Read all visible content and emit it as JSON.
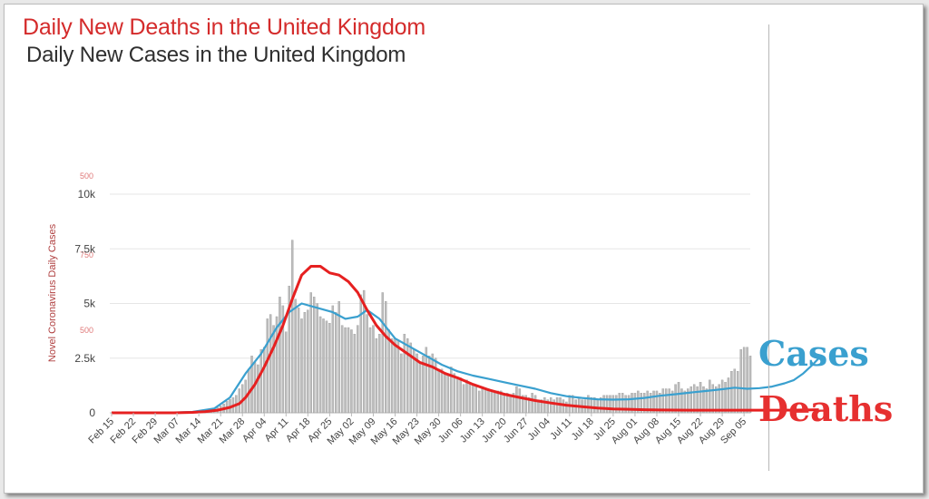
{
  "chart_data": {
    "type": "bar",
    "title": "Daily New Deaths in the United Kingdom",
    "subtitle": "Daily New Cases in the United Kingdom",
    "ylabel": "Novel Coronavirus Daily Cases",
    "ylim": [
      0,
      10000
    ],
    "yticks": [
      {
        "value": 0,
        "label": "0"
      },
      {
        "value": 2500,
        "label": "2.5k"
      },
      {
        "value": 5000,
        "label": "5k"
      },
      {
        "value": 7500,
        "label": "7.5k"
      },
      {
        "value": 10000,
        "label": "10k"
      }
    ],
    "ghost_yticks": [
      "500",
      "750",
      "500"
    ],
    "grid": true,
    "x_start_date": "Feb 15",
    "xticks": [
      "Feb 15",
      "Feb 22",
      "Feb 29",
      "Mar 07",
      "Mar 14",
      "Mar 21",
      "Mar 28",
      "Apr 04",
      "Apr 11",
      "Apr 18",
      "Apr 25",
      "May 02",
      "May 09",
      "May 16",
      "May 23",
      "May 30",
      "Jun 06",
      "Jun 13",
      "Jun 20",
      "Jun 27",
      "Jul 04",
      "Jul 11",
      "Jul 18",
      "Jul 25",
      "Aug 01",
      "Aug 08",
      "Aug 15",
      "Aug 22",
      "Aug 29",
      "Sep 05"
    ],
    "cases_daily": [
      0,
      0,
      0,
      0,
      0,
      0,
      0,
      0,
      0,
      0,
      0,
      0,
      0,
      0,
      0,
      0,
      0,
      0,
      0,
      5,
      10,
      20,
      20,
      30,
      40,
      50,
      60,
      70,
      80,
      110,
      130,
      150,
      170,
      200,
      250,
      320,
      410,
      530,
      620,
      700,
      800,
      1100,
      1300,
      1500,
      2000,
      2600,
      2300,
      2200,
      2900,
      3000,
      4300,
      4500,
      4000,
      4400,
      5300,
      4900,
      3700,
      5800,
      7900,
      5200,
      4800,
      4300,
      4600,
      4700,
      5500,
      5300,
      5000,
      4400,
      4300,
      4200,
      4100,
      4900,
      4600,
      5100,
      4000,
      3900,
      3900,
      3800,
      3600,
      4000,
      5400,
      5600,
      4500,
      3900,
      4000,
      3400,
      3600,
      5500,
      5100,
      3800,
      3400,
      3400,
      3300,
      2700,
      3600,
      3400,
      3200,
      2900,
      2700,
      2300,
      2600,
      3000,
      2600,
      2700,
      2500,
      2000,
      2000,
      1800,
      1700,
      2100,
      1800,
      1600,
      1600,
      1300,
      1500,
      1400,
      1300,
      1200,
      1000,
      1200,
      1100,
      1100,
      1000,
      900,
      1000,
      1000,
      900,
      900,
      800,
      900,
      1200,
      1100,
      800,
      800,
      700,
      900,
      800,
      600,
      600,
      700,
      600,
      700,
      600,
      700,
      700,
      600,
      500,
      800,
      800,
      600,
      700,
      600,
      600,
      800,
      700,
      700,
      600,
      700,
      800,
      800,
      800,
      800,
      800,
      900,
      900,
      800,
      800,
      900,
      900,
      1000,
      900,
      900,
      1000,
      900,
      1000,
      1000,
      900,
      1100,
      1100,
      1100,
      1000,
      1300,
      1400,
      1100,
      1000,
      1100,
      1200,
      1300,
      1200,
      1400,
      1200,
      1100,
      1500,
      1300,
      1200,
      1300,
      1500,
      1400,
      1600,
      1900,
      2000,
      1900,
      2900,
      3000,
      3000,
      2600
    ],
    "series": [
      {
        "name": "Cases",
        "color": "#3aa0cf",
        "points": [
          [
            0,
            0
          ],
          [
            19,
            5
          ],
          [
            26,
            40
          ],
          [
            33,
            200
          ],
          [
            38,
            700
          ],
          [
            43,
            1800
          ],
          [
            48,
            2700
          ],
          [
            53,
            3900
          ],
          [
            57,
            4600
          ],
          [
            61,
            5000
          ],
          [
            66,
            4800
          ],
          [
            71,
            4600
          ],
          [
            75,
            4300
          ],
          [
            79,
            4400
          ],
          [
            82,
            4700
          ],
          [
            86,
            4300
          ],
          [
            91,
            3400
          ],
          [
            96,
            3000
          ],
          [
            101,
            2600
          ],
          [
            106,
            2200
          ],
          [
            111,
            1900
          ],
          [
            116,
            1700
          ],
          [
            121,
            1550
          ],
          [
            126,
            1400
          ],
          [
            131,
            1250
          ],
          [
            136,
            1100
          ],
          [
            141,
            900
          ],
          [
            146,
            760
          ],
          [
            151,
            680
          ],
          [
            156,
            620
          ],
          [
            161,
            600
          ],
          [
            166,
            620
          ],
          [
            171,
            680
          ],
          [
            176,
            780
          ],
          [
            181,
            850
          ],
          [
            186,
            930
          ],
          [
            191,
            1000
          ],
          [
            196,
            1080
          ],
          [
            200,
            1150
          ],
          [
            204,
            1100
          ],
          [
            208,
            1130
          ],
          [
            212,
            1200
          ],
          [
            216,
            1350
          ],
          [
            219,
            1500
          ],
          [
            222,
            1800
          ],
          [
            225,
            2200
          ],
          [
            227,
            2500
          ]
        ]
      },
      {
        "name": "Deaths",
        "color": "#e62020",
        "points": [
          [
            0,
            0
          ],
          [
            20,
            0
          ],
          [
            26,
            20
          ],
          [
            30,
            50
          ],
          [
            34,
            120
          ],
          [
            38,
            250
          ],
          [
            41,
            420
          ],
          [
            43,
            700
          ],
          [
            46,
            1300
          ],
          [
            49,
            2100
          ],
          [
            52,
            3000
          ],
          [
            55,
            4000
          ],
          [
            58,
            5200
          ],
          [
            61,
            6300
          ],
          [
            64,
            6700
          ],
          [
            67,
            6700
          ],
          [
            70,
            6400
          ],
          [
            73,
            6300
          ],
          [
            76,
            6000
          ],
          [
            79,
            5500
          ],
          [
            82,
            4700
          ],
          [
            85,
            4000
          ],
          [
            88,
            3500
          ],
          [
            91,
            3100
          ],
          [
            95,
            2700
          ],
          [
            99,
            2300
          ],
          [
            103,
            2100
          ],
          [
            107,
            1800
          ],
          [
            111,
            1600
          ],
          [
            116,
            1300
          ],
          [
            121,
            1050
          ],
          [
            126,
            850
          ],
          [
            131,
            700
          ],
          [
            136,
            560
          ],
          [
            141,
            450
          ],
          [
            146,
            350
          ],
          [
            151,
            280
          ],
          [
            156,
            220
          ],
          [
            161,
            180
          ],
          [
            166,
            160
          ],
          [
            171,
            140
          ],
          [
            176,
            130
          ],
          [
            186,
            120
          ],
          [
            196,
            120
          ],
          [
            206,
            120
          ],
          [
            216,
            120
          ],
          [
            222,
            130
          ],
          [
            227,
            140
          ]
        ]
      }
    ]
  },
  "legend": {
    "cases_label": "Cases",
    "deaths_label": "Deaths",
    "cases_color": "#3aa0cf",
    "deaths_color": "#e63030"
  }
}
